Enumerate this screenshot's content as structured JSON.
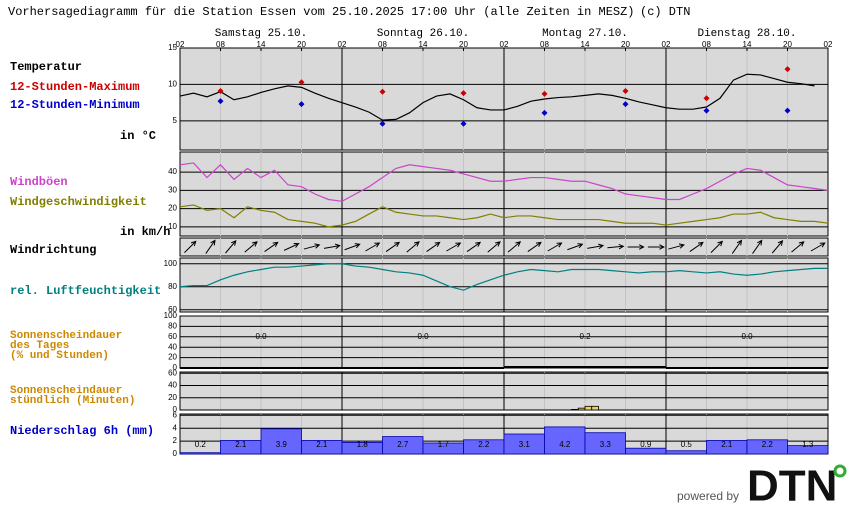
{
  "title": "Vorhersagediagramm für die Station Essen vom 25.10.2025 17:00 Uhr (alle Zeiten in MESZ)",
  "copyright": "(c) DTN",
  "footer": {
    "powered_by": "powered by",
    "logo": "DTN"
  },
  "chart_data": [
    {
      "type": "line",
      "title": "Temperatur",
      "unit": "in °C",
      "days": [
        "Samstag 25.10.",
        "Sonntag 26.10.",
        "Montag 27.10.",
        "Dienstag 28.10."
      ],
      "xlim": [
        0,
        96
      ],
      "xticks": [
        {
          "value": 0,
          "label": "02"
        },
        {
          "value": 6,
          "label": "08"
        },
        {
          "value": 12,
          "label": "14"
        },
        {
          "value": 18,
          "label": "20"
        },
        {
          "value": 24,
          "label": "02"
        },
        {
          "value": 30,
          "label": "08"
        },
        {
          "value": 36,
          "label": "14"
        },
        {
          "value": 42,
          "label": "20"
        },
        {
          "value": 48,
          "label": "02"
        },
        {
          "value": 54,
          "label": "08"
        },
        {
          "value": 60,
          "label": "14"
        },
        {
          "value": 66,
          "label": "20"
        },
        {
          "value": 72,
          "label": "02"
        },
        {
          "value": 78,
          "label": "08"
        },
        {
          "value": 84,
          "label": "14"
        },
        {
          "value": 90,
          "label": "20"
        },
        {
          "value": 96,
          "label": "02"
        }
      ],
      "ylim": [
        1,
        15
      ],
      "yticks": [
        5,
        10,
        15
      ],
      "series": [
        {
          "color": "#000000",
          "style": "line",
          "x": [
            0,
            2,
            4,
            6,
            8,
            10,
            12,
            14,
            16,
            18,
            20,
            22,
            24,
            26,
            28,
            30,
            32,
            34,
            36,
            38,
            40,
            42,
            44,
            46,
            48,
            50,
            52,
            54,
            56,
            58,
            60,
            62,
            64,
            66,
            68,
            70,
            72,
            74,
            76,
            78,
            80,
            82,
            84,
            86,
            88,
            90,
            92,
            94,
            96
          ],
          "values": [
            8.4,
            8.8,
            8.3,
            9.0,
            7.9,
            8.3,
            8.9,
            9.4,
            9.8,
            9.6,
            8.8,
            8.1,
            7.5,
            6.9,
            6.2,
            5.1,
            5.2,
            6.1,
            7.5,
            8.4,
            8.7,
            7.9,
            6.8,
            6.5,
            6.5,
            7.0,
            7.7,
            8.0,
            8.2,
            8.3,
            8.5,
            8.7,
            8.5,
            8.1,
            7.6,
            7.2,
            6.8,
            6.6,
            6.6,
            6.9,
            8.1,
            10.6,
            11.4,
            11.3,
            10.8,
            10.3,
            10.1,
            9.8,
            null
          ]
        },
        {
          "name": "12-Stunden-Maximum",
          "color": "#cc0000",
          "style": "marker",
          "x": [
            6,
            18,
            30,
            42,
            54,
            66,
            78,
            90
          ],
          "values": [
            9.1,
            10.3,
            9.0,
            8.8,
            8.7,
            9.1,
            8.1,
            12.1
          ]
        },
        {
          "name": "12-Stunden-Minimum",
          "color": "#0000cc",
          "style": "marker",
          "x": [
            6,
            18,
            30,
            42,
            54,
            66,
            78,
            90
          ],
          "values": [
            7.7,
            7.3,
            4.6,
            4.6,
            6.1,
            7.3,
            6.4,
            6.4
          ]
        }
      ]
    },
    {
      "type": "line",
      "unit": "in km/h",
      "xlim": [
        0,
        96
      ],
      "ylim": [
        5,
        51
      ],
      "yticks": [
        10,
        20,
        30,
        40
      ],
      "series": [
        {
          "name": "Windböen",
          "color": "#cc44cc",
          "style": "line",
          "x": [
            0,
            2,
            4,
            6,
            8,
            10,
            12,
            14,
            16,
            18,
            20,
            22,
            24,
            26,
            28,
            30,
            32,
            34,
            36,
            38,
            40,
            42,
            44,
            46,
            48,
            50,
            52,
            54,
            56,
            58,
            60,
            62,
            64,
            66,
            68,
            70,
            72,
            74,
            76,
            78,
            80,
            82,
            84,
            86,
            88,
            90,
            92,
            94,
            96
          ],
          "values": [
            44,
            45,
            37,
            44,
            36,
            42,
            37,
            41,
            33,
            32,
            28,
            25,
            24,
            28,
            32,
            37,
            42,
            44,
            43,
            42,
            41,
            39,
            37,
            35,
            35,
            36,
            37,
            37,
            36,
            35,
            35,
            33,
            31,
            28,
            27,
            26,
            25,
            25,
            28,
            31,
            35,
            39,
            42,
            41,
            37,
            33,
            32,
            31,
            30
          ]
        },
        {
          "name": "Windgeschwindigkeit",
          "color": "#808000",
          "style": "line",
          "x": [
            0,
            2,
            4,
            6,
            8,
            10,
            12,
            14,
            16,
            18,
            20,
            22,
            24,
            26,
            28,
            30,
            32,
            34,
            36,
            38,
            40,
            42,
            44,
            46,
            48,
            50,
            52,
            54,
            56,
            58,
            60,
            62,
            64,
            66,
            68,
            70,
            72,
            74,
            76,
            78,
            80,
            82,
            84,
            86,
            88,
            90,
            92,
            94,
            96
          ],
          "values": [
            21,
            22,
            19,
            20,
            15,
            21,
            19,
            18,
            14,
            13,
            12,
            10,
            11,
            13,
            17,
            21,
            18,
            17,
            16,
            16,
            15,
            14,
            15,
            17,
            15,
            16,
            16,
            15,
            14,
            14,
            14,
            14,
            13,
            12,
            12,
            12,
            11,
            12,
            13,
            14,
            15,
            17,
            17,
            18,
            15,
            14,
            13,
            13,
            12
          ]
        }
      ]
    },
    {
      "type": "vector",
      "title": "Windrichtung",
      "xlim": [
        0,
        96
      ],
      "color": "#000000",
      "x": [
        1.5,
        4.5,
        7.5,
        10.5,
        13.5,
        16.5,
        19.5,
        22.5,
        25.5,
        28.5,
        31.5,
        34.5,
        37.5,
        40.5,
        43.5,
        46.5,
        49.5,
        52.5,
        55.5,
        58.5,
        61.5,
        64.5,
        67.5,
        70.5,
        73.5,
        76.5,
        79.5,
        82.5,
        85.5,
        88.5,
        91.5,
        94.5
      ],
      "values": [
        225,
        215,
        220,
        230,
        235,
        245,
        255,
        260,
        250,
        240,
        235,
        230,
        235,
        240,
        235,
        230,
        230,
        235,
        240,
        250,
        260,
        265,
        270,
        270,
        255,
        235,
        225,
        215,
        215,
        220,
        230,
        240
      ]
    },
    {
      "type": "line",
      "xlim": [
        0,
        96
      ],
      "ylim": [
        58,
        105
      ],
      "yticks": [
        60,
        80,
        100
      ],
      "series": [
        {
          "name": "rel. Luftfeuchtigkeit",
          "color": "#008080",
          "style": "line",
          "x": [
            0,
            2,
            4,
            6,
            8,
            10,
            12,
            14,
            16,
            18,
            20,
            22,
            24,
            26,
            28,
            30,
            32,
            34,
            36,
            38,
            40,
            42,
            44,
            46,
            48,
            50,
            52,
            54,
            56,
            58,
            60,
            62,
            64,
            66,
            68,
            70,
            72,
            74,
            76,
            78,
            80,
            82,
            84,
            86,
            88,
            90,
            92,
            94,
            96
          ],
          "values": [
            80,
            81,
            81,
            86,
            90,
            93,
            95,
            97,
            97,
            98,
            99,
            100,
            100,
            98,
            97,
            95,
            93,
            92,
            90,
            85,
            80,
            77,
            82,
            86,
            90,
            93,
            95,
            94,
            93,
            95,
            95,
            95,
            94,
            93,
            92,
            93,
            93,
            94,
            93,
            92,
            93,
            91,
            90,
            91,
            93,
            94,
            95,
            96,
            96
          ]
        }
      ]
    },
    {
      "type": "daily",
      "title": [
        "Sonnenscheindauer",
        "des Tages",
        "(% und Stunden)"
      ],
      "ylim": [
        0,
        100
      ],
      "yticks": [
        0,
        20,
        40,
        60,
        80,
        100
      ],
      "color": "#000000",
      "values": [
        0,
        0,
        2,
        0
      ],
      "hours": [
        0,
        0,
        0.2,
        0
      ],
      "hours_labels": [
        "0.0",
        "0.0",
        "0.2",
        "0.0"
      ]
    },
    {
      "type": "histogram",
      "title": [
        "Sonnenscheindauer",
        "stündlich (Minuten)"
      ],
      "xlim": [
        0,
        96
      ],
      "ylim": [
        0,
        62
      ],
      "yticks": [
        0,
        20,
        40,
        60
      ],
      "color": "#f0d060",
      "bins": [
        58,
        59,
        60,
        61,
        62
      ],
      "values": [
        1,
        3,
        6,
        6
      ]
    },
    {
      "type": "histogram",
      "title": "Niederschlag 6h (mm)",
      "xlim": [
        0,
        96
      ],
      "ylim": [
        0,
        6.2
      ],
      "yticks": [
        0,
        2,
        4,
        6
      ],
      "color": "#6666ff",
      "labels": true,
      "bins": [
        0,
        6,
        12,
        18,
        24,
        30,
        36,
        42,
        48,
        54,
        60,
        66,
        72,
        78,
        84,
        90,
        96
      ],
      "values": [
        0.2,
        2.1,
        3.9,
        2.1,
        1.8,
        2.7,
        1.7,
        2.2,
        3.1,
        4.2,
        3.3,
        0.9,
        0.5,
        2.1,
        2.2,
        1.3
      ]
    }
  ]
}
